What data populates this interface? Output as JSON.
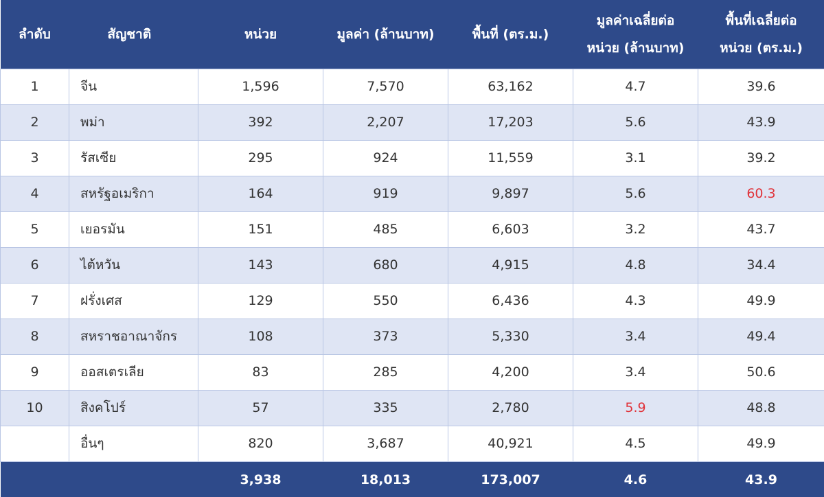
{
  "header": {
    "rank": "ลำดับ",
    "nationality": "สัญชาติ",
    "units": "หน่วย",
    "value": "มูลค่า (ล้านบาท)",
    "area": "พื้นที่ (ตร.ม.)",
    "avg_value_line1": "มูลค่าเฉลี่ยต่อ",
    "avg_value_line2": "หน่วย (ล้านบาท)",
    "avg_area_line1": "พื้นที่เฉลี่ยต่อ",
    "avg_area_line2": "หน่วย (ตร.ม.)"
  },
  "rows": [
    {
      "rank": "1",
      "nationality": "จีน",
      "units": "1,596",
      "value": "7,570",
      "area": "63,162",
      "avg_value": "4.7",
      "avg_area": "39.6"
    },
    {
      "rank": "2",
      "nationality": "พม่า",
      "units": "392",
      "value": "2,207",
      "area": "17,203",
      "avg_value": "5.6",
      "avg_area": "43.9"
    },
    {
      "rank": "3",
      "nationality": "รัสเซีย",
      "units": "295",
      "value": "924",
      "area": "11,559",
      "avg_value": "3.1",
      "avg_area": "39.2"
    },
    {
      "rank": "4",
      "nationality": "สหรัฐอเมริกา",
      "units": "164",
      "value": "919",
      "area": "9,897",
      "avg_value": "5.6",
      "avg_area": "60.3"
    },
    {
      "rank": "5",
      "nationality": "เยอรมัน",
      "units": "151",
      "value": "485",
      "area": "6,603",
      "avg_value": "3.2",
      "avg_area": "43.7"
    },
    {
      "rank": "6",
      "nationality": "ไต้หวัน",
      "units": "143",
      "value": "680",
      "area": "4,915",
      "avg_value": "4.8",
      "avg_area": "34.4"
    },
    {
      "rank": "7",
      "nationality": "ฝรั่งเศส",
      "units": "129",
      "value": "550",
      "area": "6,436",
      "avg_value": "4.3",
      "avg_area": "49.9"
    },
    {
      "rank": "8",
      "nationality": "สหราชอาณาจักร",
      "units": "108",
      "value": "373",
      "area": "5,330",
      "avg_value": "3.4",
      "avg_area": "49.4"
    },
    {
      "rank": "9",
      "nationality": "ออสเตรเลีย",
      "units": "83",
      "value": "285",
      "area": "4,200",
      "avg_value": "3.4",
      "avg_area": "50.6"
    },
    {
      "rank": "10",
      "nationality": "สิงคโปร์",
      "units": "57",
      "value": "335",
      "area": "2,780",
      "avg_value": "5.9",
      "avg_area": "48.8"
    },
    {
      "rank": "",
      "nationality": "อื่นๆ",
      "units": "820",
      "value": "3,687",
      "area": "40,921",
      "avg_value": "4.5",
      "avg_area": "49.9"
    }
  ],
  "total": {
    "units": "3,938",
    "value": "18,013",
    "area": "173,007",
    "avg_value": "4.6",
    "avg_area": "43.9"
  },
  "highlight_color": "#e0333a",
  "header_color": "#2e4a8a"
}
